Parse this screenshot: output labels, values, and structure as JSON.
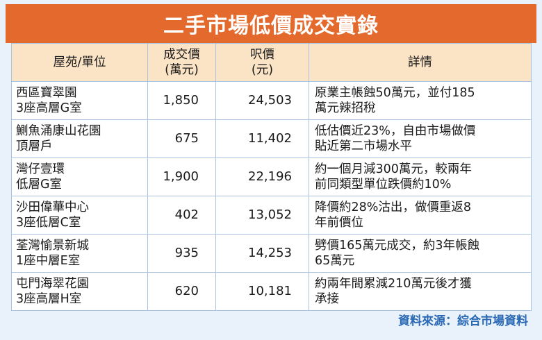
{
  "title": "二手市場低價成交實錄",
  "headers": {
    "estate_unit": "屋苑/單位",
    "price_line1": "成交價",
    "price_line2": "(萬元)",
    "psf_line1": "呎價",
    "psf_line2": "(元)",
    "details": "詳情"
  },
  "rows": [
    {
      "estate": "西區寶翠園",
      "unit": "3座高層G室",
      "price": "1,850",
      "psf": "24,503",
      "detail_line1": "原業主帳蝕50萬元，並付185",
      "detail_line2": "萬元辣招稅"
    },
    {
      "estate": "鰂魚涌康山花園",
      "unit": "頂層戶",
      "price": "675",
      "psf": "11,402",
      "detail_line1": "低估價近23%，自由市場做價",
      "detail_line2": "貼近第二市場水平"
    },
    {
      "estate": "灣仔壹環",
      "unit": "低層G室",
      "price": "1,900",
      "psf": "22,196",
      "detail_line1": "約一個月減300萬元，較兩年",
      "detail_line2": "前同類型單位跌價約10%"
    },
    {
      "estate": "沙田偉華中心",
      "unit": "3座低層C室",
      "price": "402",
      "psf": "13,052",
      "detail_line1": "降價約28%沽出，做價重返8",
      "detail_line2": "年前價位"
    },
    {
      "estate": "荃灣愉景新城",
      "unit": "1座中層E室",
      "price": "935",
      "psf": "14,253",
      "detail_line1": "劈價165萬元成交，約3年帳蝕",
      "detail_line2": "65萬元"
    },
    {
      "estate": "屯門海翠花園",
      "unit": "3座高層H室",
      "price": "620",
      "psf": "10,181",
      "detail_line1": "約兩年間累減210萬元後才獲",
      "detail_line2": "承接"
    }
  ],
  "source": "資料來源：綜合市場資料",
  "colors": {
    "title_bg": "#e3692c",
    "header_bg": "#fbe3c5",
    "page_bg": "#e9f2fb",
    "source_text": "#2868b4"
  }
}
